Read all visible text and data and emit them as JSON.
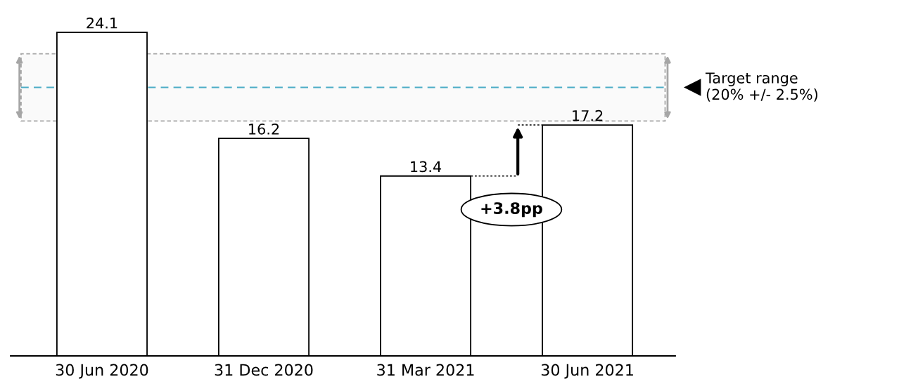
{
  "chart_data": {
    "type": "bar",
    "categories": [
      "30 Jun 2020",
      "31 Dec 2020",
      "31 Mar 2021",
      "30 Jun 2021"
    ],
    "values": [
      24.1,
      16.2,
      13.4,
      17.2
    ],
    "color": "#ffffff",
    "data_labels": true,
    "grid": false,
    "tick_labels": "x",
    "ref_lines": [
      {
        "axis": "y",
        "value": 20,
        "color": "#4bacc6",
        "line_style": "dashed"
      }
    ],
    "bands": [
      {
        "axis": "y",
        "from": 17.5,
        "to": 22.5,
        "label": "Target range\n(20% +/- 2.5%)",
        "color": "#a6a6a6"
      }
    ],
    "annotations": [
      "+3.8pp"
    ]
  }
}
